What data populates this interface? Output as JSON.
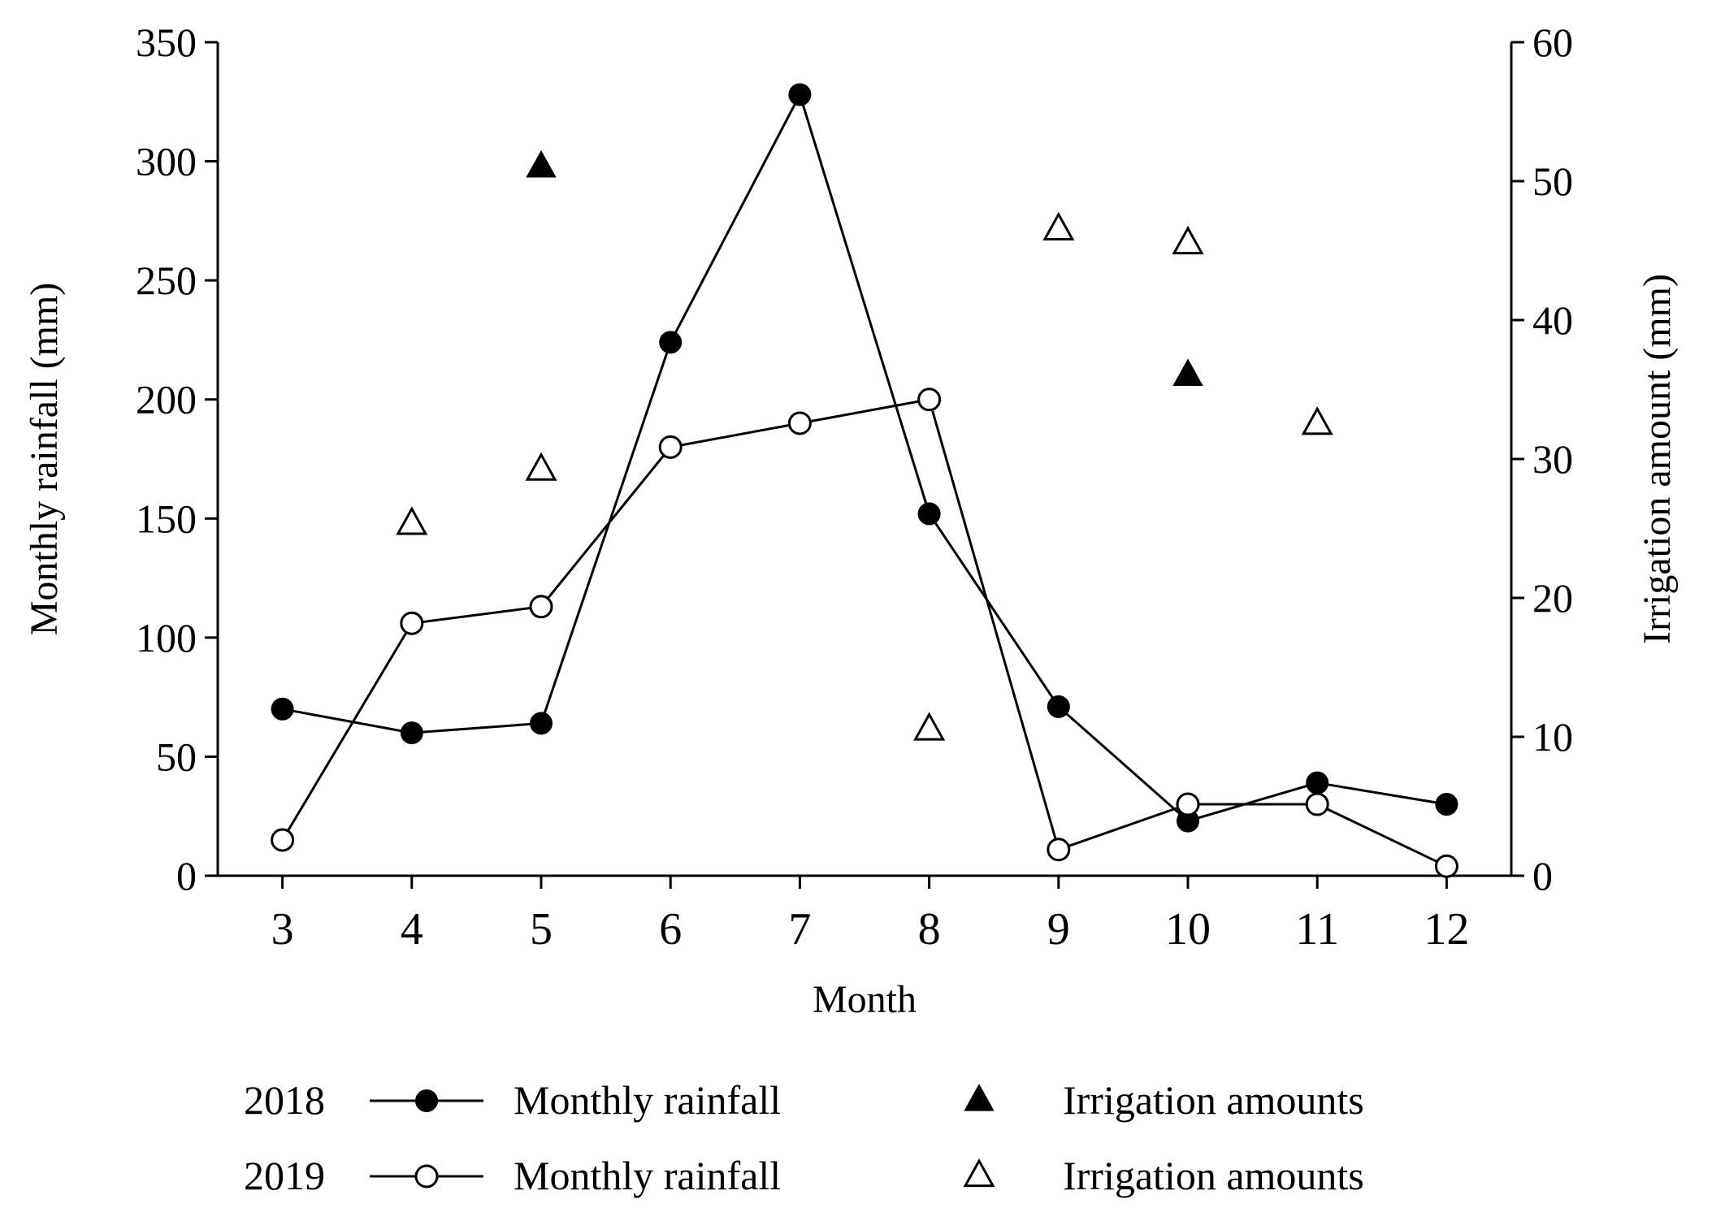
{
  "chart_data": {
    "type": "line",
    "x": [
      3,
      4,
      5,
      6,
      7,
      8,
      9,
      10,
      11,
      12
    ],
    "xlabel": "Month",
    "ylabel_left": "Monthly rainfall (mm)",
    "ylabel_right": "Irrigation amount (mm)",
    "ylim_left": [
      0,
      350
    ],
    "ylim_right": [
      0,
      60
    ],
    "yticks_left": [
      0,
      50,
      100,
      150,
      200,
      250,
      300,
      350
    ],
    "yticks_right": [
      0,
      10,
      20,
      30,
      40,
      50,
      60
    ],
    "grid": false,
    "series": [
      {
        "name": "2018 Monthly rainfall",
        "axis": "left",
        "marker": "filled-circle",
        "line": true,
        "x": [
          3,
          4,
          5,
          6,
          7,
          8,
          9,
          10,
          11,
          12
        ],
        "values": [
          70,
          60,
          64,
          224,
          328,
          152,
          71,
          23,
          39,
          30
        ]
      },
      {
        "name": "2019 Monthly rainfall",
        "axis": "left",
        "marker": "open-circle",
        "line": true,
        "x": [
          3,
          4,
          5,
          6,
          7,
          8,
          9,
          10,
          11,
          12
        ],
        "values": [
          15,
          106,
          113,
          180,
          190,
          200,
          11,
          30,
          30,
          4
        ]
      },
      {
        "name": "2018 Irrigation amounts",
        "axis": "right",
        "marker": "filled-triangle",
        "line": false,
        "x": [
          5,
          10
        ],
        "values": [
          51,
          36
        ]
      },
      {
        "name": "2019 Irrigation amounts",
        "axis": "right",
        "marker": "open-triangle",
        "line": false,
        "x": [
          4,
          5,
          8,
          9,
          10,
          11
        ],
        "values": [
          25.3,
          29.2,
          10.5,
          46.5,
          45.5,
          32.5
        ]
      }
    ],
    "legend": {
      "placement": "bottom",
      "rows": [
        {
          "year": "2018",
          "rainfall_label": "Monthly rainfall",
          "irrigation_label": "Irrigation amounts"
        },
        {
          "year": "2019",
          "rainfall_label": "Monthly rainfall",
          "irrigation_label": "Irrigation amounts"
        }
      ]
    }
  }
}
